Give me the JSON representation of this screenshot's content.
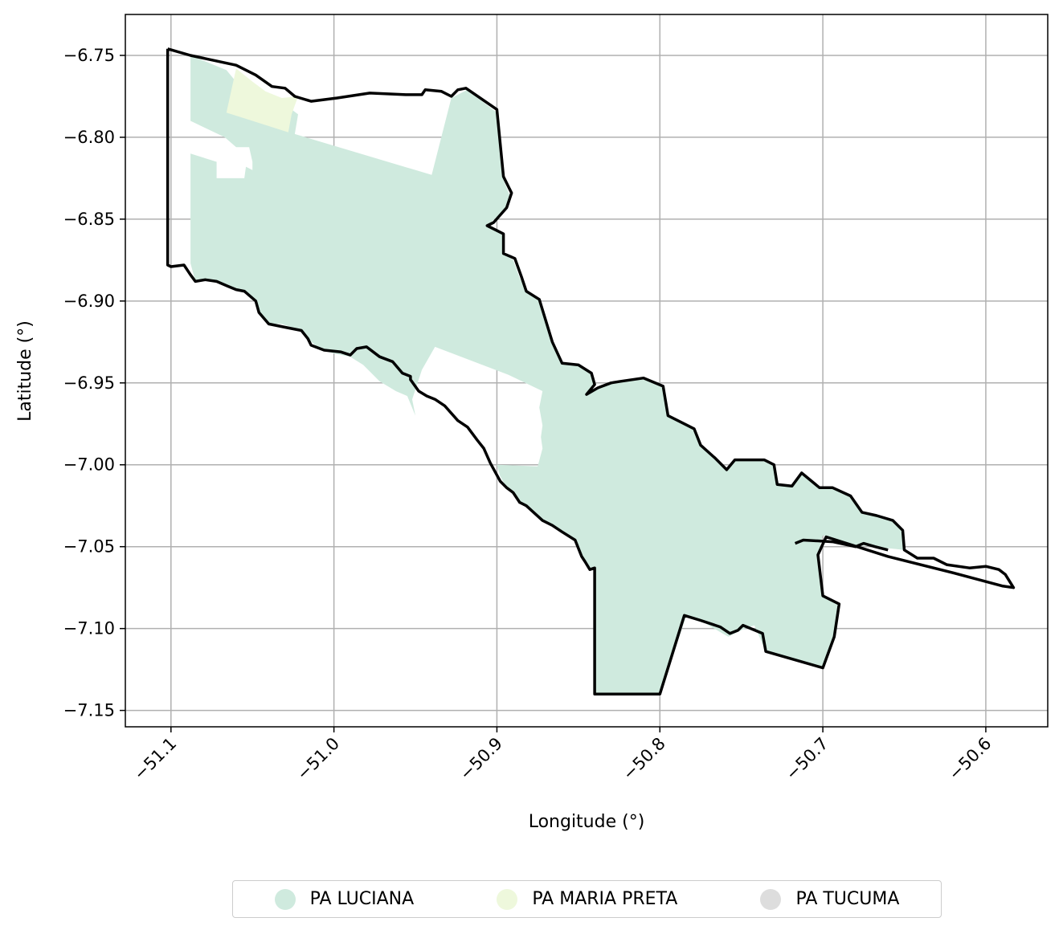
{
  "chart_data": {
    "type": "map",
    "xlabel": "Longitude (°)",
    "ylabel": "Latitude (°)",
    "xlim": [
      -51.128,
      -50.562
    ],
    "ylim": [
      -7.16,
      -6.725
    ],
    "x_ticks": [
      -51.1,
      -51.0,
      -50.9,
      -50.8,
      -50.7,
      -50.6
    ],
    "x_tick_labels": [
      "−51.1",
      "−51.0",
      "−50.9",
      "−50.8",
      "−50.7",
      "−50.6"
    ],
    "y_ticks": [
      -6.75,
      -6.8,
      -6.85,
      -6.9,
      -6.95,
      -7.0,
      -7.05,
      -7.1,
      -7.15
    ],
    "y_tick_labels": [
      "−6.75",
      "−6.80",
      "−6.85",
      "−6.90",
      "−6.95",
      "−7.00",
      "−7.05",
      "−7.10",
      "−7.15"
    ],
    "grid": true,
    "legend_position": "bottom-center",
    "legend": [
      {
        "name": "PA LUCIANA",
        "color": "#cfeade"
      },
      {
        "name": "PA MARIA PRETA",
        "color": "#eef8dc"
      },
      {
        "name": "PA TUCUMA",
        "color": "#dddddd"
      }
    ],
    "areas": [
      {
        "name": "PA LUCIANA",
        "color": "#cfeade",
        "coords": [
          [
            -51.088,
            -6.75
          ],
          [
            -51.066,
            -6.759
          ],
          [
            -51.056,
            -6.771
          ],
          [
            -51.046,
            -6.778
          ],
          [
            -51.034,
            -6.781
          ],
          [
            -51.026,
            -6.783
          ],
          [
            -51.022,
            -6.786
          ],
          [
            -51.024,
            -6.798
          ],
          [
            -50.94,
            -6.823
          ],
          [
            -50.928,
            -6.776
          ],
          [
            -50.918,
            -6.771
          ],
          [
            -50.9,
            -6.785
          ],
          [
            -50.896,
            -6.826
          ],
          [
            -50.892,
            -6.836
          ],
          [
            -50.894,
            -6.843
          ],
          [
            -50.906,
            -6.854
          ],
          [
            -50.896,
            -6.859
          ],
          [
            -50.896,
            -6.871
          ],
          [
            -50.89,
            -6.875
          ],
          [
            -50.886,
            -6.886
          ],
          [
            -50.88,
            -6.896
          ],
          [
            -50.874,
            -6.899
          ],
          [
            -50.866,
            -6.925
          ],
          [
            -50.86,
            -6.938
          ],
          [
            -50.85,
            -6.939
          ],
          [
            -50.842,
            -6.944
          ],
          [
            -50.84,
            -6.951
          ],
          [
            -50.845,
            -6.957
          ],
          [
            -50.838,
            -6.953
          ],
          [
            -50.83,
            -6.95
          ],
          [
            -50.824,
            -6.949
          ],
          [
            -50.81,
            -6.947
          ],
          [
            -50.798,
            -6.952
          ],
          [
            -50.795,
            -6.97
          ],
          [
            -50.787,
            -6.974
          ],
          [
            -50.779,
            -6.978
          ],
          [
            -50.775,
            -6.988
          ],
          [
            -50.766,
            -6.996
          ],
          [
            -50.759,
            -7.003
          ],
          [
            -50.754,
            -6.997
          ],
          [
            -50.745,
            -6.997
          ],
          [
            -50.736,
            -6.997
          ],
          [
            -50.73,
            -7.0
          ],
          [
            -50.728,
            -7.012
          ],
          [
            -50.719,
            -7.013
          ],
          [
            -50.713,
            -7.005
          ],
          [
            -50.702,
            -7.014
          ],
          [
            -50.694,
            -7.014
          ],
          [
            -50.683,
            -7.019
          ],
          [
            -50.676,
            -7.029
          ],
          [
            -50.667,
            -7.031
          ],
          [
            -50.657,
            -7.034
          ],
          [
            -50.651,
            -7.04
          ],
          [
            -50.65,
            -7.052
          ],
          [
            -50.688,
            -7.048
          ],
          [
            -50.7,
            -7.043
          ],
          [
            -50.703,
            -7.055
          ],
          [
            -50.7,
            -7.08
          ],
          [
            -50.69,
            -7.085
          ],
          [
            -50.693,
            -7.105
          ],
          [
            -50.7,
            -7.124
          ],
          [
            -50.735,
            -7.114
          ],
          [
            -50.742,
            -7.098
          ],
          [
            -50.748,
            -7.1
          ],
          [
            -50.758,
            -7.105
          ],
          [
            -50.772,
            -7.097
          ],
          [
            -50.784,
            -7.093
          ],
          [
            -50.8,
            -7.14
          ],
          [
            -50.84,
            -7.14
          ],
          [
            -50.84,
            -7.063
          ],
          [
            -50.843,
            -7.064
          ],
          [
            -50.846,
            -7.06
          ],
          [
            -50.848,
            -7.057
          ],
          [
            -50.85,
            -7.05
          ],
          [
            -50.852,
            -7.046
          ],
          [
            -50.86,
            -7.04
          ],
          [
            -50.872,
            -7.034
          ],
          [
            -50.882,
            -7.025
          ],
          [
            -50.886,
            -7.023
          ],
          [
            -50.894,
            -7.014
          ],
          [
            -50.898,
            -7.007
          ],
          [
            -50.9,
            -7.0
          ],
          [
            -50.875,
            -7.001
          ],
          [
            -50.872,
            -6.99
          ],
          [
            -50.873,
            -6.983
          ],
          [
            -50.872,
            -6.976
          ],
          [
            -50.874,
            -6.965
          ],
          [
            -50.872,
            -6.955
          ],
          [
            -50.893,
            -6.945
          ],
          [
            -50.938,
            -6.928
          ],
          [
            -50.946,
            -6.942
          ],
          [
            -50.952,
            -6.96
          ],
          [
            -50.95,
            -6.97
          ],
          [
            -50.955,
            -6.958
          ],
          [
            -50.962,
            -6.955
          ],
          [
            -50.972,
            -6.949
          ],
          [
            -50.982,
            -6.939
          ],
          [
            -50.99,
            -6.934
          ],
          [
            -51.0,
            -6.932
          ],
          [
            -51.008,
            -6.93
          ],
          [
            -51.016,
            -6.923
          ],
          [
            -51.02,
            -6.918
          ],
          [
            -51.032,
            -6.914
          ],
          [
            -51.04,
            -6.914
          ],
          [
            -51.046,
            -6.907
          ],
          [
            -51.048,
            -6.9
          ],
          [
            -51.055,
            -6.894
          ],
          [
            -51.06,
            -6.893
          ],
          [
            -51.065,
            -6.891
          ],
          [
            -51.072,
            -6.888
          ],
          [
            -51.079,
            -6.887
          ],
          [
            -51.085,
            -6.888
          ],
          [
            -51.088,
            -6.877
          ],
          [
            -51.088,
            -6.81
          ],
          [
            -51.072,
            -6.815
          ],
          [
            -51.072,
            -6.825
          ],
          [
            -51.055,
            -6.825
          ],
          [
            -51.054,
            -6.818
          ],
          [
            -51.05,
            -6.82
          ],
          [
            -51.05,
            -6.815
          ],
          [
            -51.052,
            -6.806
          ],
          [
            -51.06,
            -6.806
          ],
          [
            -51.067,
            -6.8
          ],
          [
            -51.088,
            -6.79
          ],
          [
            -51.088,
            -6.75
          ]
        ]
      },
      {
        "name": "PA MARIA PRETA",
        "color": "#eef8dc",
        "coords": [
          [
            -51.06,
            -6.758
          ],
          [
            -51.05,
            -6.766
          ],
          [
            -51.042,
            -6.772
          ],
          [
            -51.032,
            -6.776
          ],
          [
            -51.022,
            -6.775
          ],
          [
            -51.026,
            -6.786
          ],
          [
            -51.028,
            -6.797
          ],
          [
            -51.05,
            -6.79
          ],
          [
            -51.066,
            -6.785
          ],
          [
            -51.06,
            -6.758
          ]
        ]
      },
      {
        "name": "PA TUCUMA",
        "color": "#dddddd",
        "coords": []
      }
    ],
    "boundary": [
      [
        -51.102,
        -6.746
      ],
      [
        -51.088,
        -6.75
      ],
      [
        -51.06,
        -6.756
      ],
      [
        -51.048,
        -6.762
      ],
      [
        -51.038,
        -6.769
      ],
      [
        -51.03,
        -6.77
      ],
      [
        -51.024,
        -6.775
      ],
      [
        -51.014,
        -6.778
      ],
      [
        -50.998,
        -6.776
      ],
      [
        -50.978,
        -6.773
      ],
      [
        -50.956,
        -6.774
      ],
      [
        -50.946,
        -6.774
      ],
      [
        -50.944,
        -6.771
      ],
      [
        -50.934,
        -6.772
      ],
      [
        -50.928,
        -6.775
      ],
      [
        -50.924,
        -6.771
      ],
      [
        -50.919,
        -6.77
      ],
      [
        -50.9,
        -6.783
      ],
      [
        -50.896,
        -6.824
      ],
      [
        -50.891,
        -6.834
      ],
      [
        -50.894,
        -6.843
      ],
      [
        -50.902,
        -6.852
      ],
      [
        -50.906,
        -6.854
      ],
      [
        -50.896,
        -6.859
      ],
      [
        -50.896,
        -6.871
      ],
      [
        -50.889,
        -6.874
      ],
      [
        -50.885,
        -6.885
      ],
      [
        -50.882,
        -6.894
      ],
      [
        -50.874,
        -6.899
      ],
      [
        -50.866,
        -6.925
      ],
      [
        -50.86,
        -6.938
      ],
      [
        -50.85,
        -6.939
      ],
      [
        -50.842,
        -6.944
      ],
      [
        -50.84,
        -6.951
      ],
      [
        -50.845,
        -6.957
      ],
      [
        -50.838,
        -6.953
      ],
      [
        -50.83,
        -6.95
      ],
      [
        -50.824,
        -6.949
      ],
      [
        -50.81,
        -6.947
      ],
      [
        -50.798,
        -6.952
      ],
      [
        -50.795,
        -6.97
      ],
      [
        -50.787,
        -6.974
      ],
      [
        -50.779,
        -6.978
      ],
      [
        -50.775,
        -6.988
      ],
      [
        -50.766,
        -6.996
      ],
      [
        -50.759,
        -7.003
      ],
      [
        -50.754,
        -6.997
      ],
      [
        -50.745,
        -6.997
      ],
      [
        -50.736,
        -6.997
      ],
      [
        -50.73,
        -7.0
      ],
      [
        -50.728,
        -7.012
      ],
      [
        -50.719,
        -7.013
      ],
      [
        -50.713,
        -7.005
      ],
      [
        -50.702,
        -7.014
      ],
      [
        -50.694,
        -7.014
      ],
      [
        -50.683,
        -7.019
      ],
      [
        -50.676,
        -7.029
      ],
      [
        -50.667,
        -7.031
      ],
      [
        -50.657,
        -7.034
      ],
      [
        -50.651,
        -7.04
      ],
      [
        -50.65,
        -7.052
      ],
      [
        -50.642,
        -7.057
      ],
      [
        -50.632,
        -7.057
      ],
      [
        -50.624,
        -7.061
      ],
      [
        -50.61,
        -7.063
      ],
      [
        -50.6,
        -7.062
      ],
      [
        -50.592,
        -7.064
      ],
      [
        -50.588,
        -7.067
      ],
      [
        -50.583,
        -7.075
      ],
      [
        -50.59,
        -7.074
      ],
      [
        -50.62,
        -7.066
      ],
      [
        -50.66,
        -7.056
      ],
      [
        -50.698,
        -7.044
      ],
      [
        -50.703,
        -7.055
      ],
      [
        -50.7,
        -7.08
      ],
      [
        -50.69,
        -7.085
      ],
      [
        -50.693,
        -7.105
      ],
      [
        -50.7,
        -7.124
      ],
      [
        -50.735,
        -7.114
      ],
      [
        -50.737,
        -7.103
      ],
      [
        -50.749,
        -7.098
      ],
      [
        -50.752,
        -7.101
      ],
      [
        -50.757,
        -7.103
      ],
      [
        -50.763,
        -7.099
      ],
      [
        -50.775,
        -7.095
      ],
      [
        -50.785,
        -7.092
      ],
      [
        -50.8,
        -7.14
      ],
      [
        -50.84,
        -7.14
      ],
      [
        -50.84,
        -7.063
      ],
      [
        -50.843,
        -7.064
      ],
      [
        -50.846,
        -7.059
      ],
      [
        -50.848,
        -7.056
      ],
      [
        -50.852,
        -7.046
      ],
      [
        -50.86,
        -7.041
      ],
      [
        -50.866,
        -7.037
      ],
      [
        -50.872,
        -7.034
      ],
      [
        -50.882,
        -7.025
      ],
      [
        -50.886,
        -7.023
      ],
      [
        -50.89,
        -7.017
      ],
      [
        -50.894,
        -7.014
      ],
      [
        -50.898,
        -7.01
      ],
      [
        -50.904,
        -6.999
      ],
      [
        -50.908,
        -6.99
      ],
      [
        -50.912,
        -6.985
      ],
      [
        -50.918,
        -6.977
      ],
      [
        -50.924,
        -6.973
      ],
      [
        -50.932,
        -6.964
      ],
      [
        -50.938,
        -6.96
      ],
      [
        -50.943,
        -6.958
      ],
      [
        -50.948,
        -6.955
      ],
      [
        -50.953,
        -6.948
      ],
      [
        -50.953,
        -6.946
      ],
      [
        -50.958,
        -6.944
      ],
      [
        -50.964,
        -6.937
      ],
      [
        -50.972,
        -6.934
      ],
      [
        -50.98,
        -6.928
      ],
      [
        -50.986,
        -6.929
      ],
      [
        -50.99,
        -6.933
      ],
      [
        -50.996,
        -6.931
      ],
      [
        -51.006,
        -6.93
      ],
      [
        -51.014,
        -6.927
      ],
      [
        -51.016,
        -6.923
      ],
      [
        -51.02,
        -6.918
      ],
      [
        -51.03,
        -6.916
      ],
      [
        -51.04,
        -6.914
      ],
      [
        -51.046,
        -6.907
      ],
      [
        -51.048,
        -6.9
      ],
      [
        -51.055,
        -6.894
      ],
      [
        -51.06,
        -6.893
      ],
      [
        -51.065,
        -6.891
      ],
      [
        -51.072,
        -6.888
      ],
      [
        -51.079,
        -6.887
      ],
      [
        -51.085,
        -6.888
      ],
      [
        -51.088,
        -6.884
      ],
      [
        -51.092,
        -6.878
      ],
      [
        -51.1,
        -6.879
      ],
      [
        -51.102,
        -6.878
      ],
      [
        -51.102,
        -6.746
      ]
    ],
    "boundary_extra": [
      [
        -50.717,
        -7.048
      ],
      [
        -50.712,
        -7.046
      ],
      [
        -50.694,
        -7.047
      ],
      [
        -50.68,
        -7.05
      ],
      [
        -50.675,
        -7.048
      ],
      [
        -50.668,
        -7.05
      ],
      [
        -50.66,
        -7.052
      ]
    ]
  }
}
